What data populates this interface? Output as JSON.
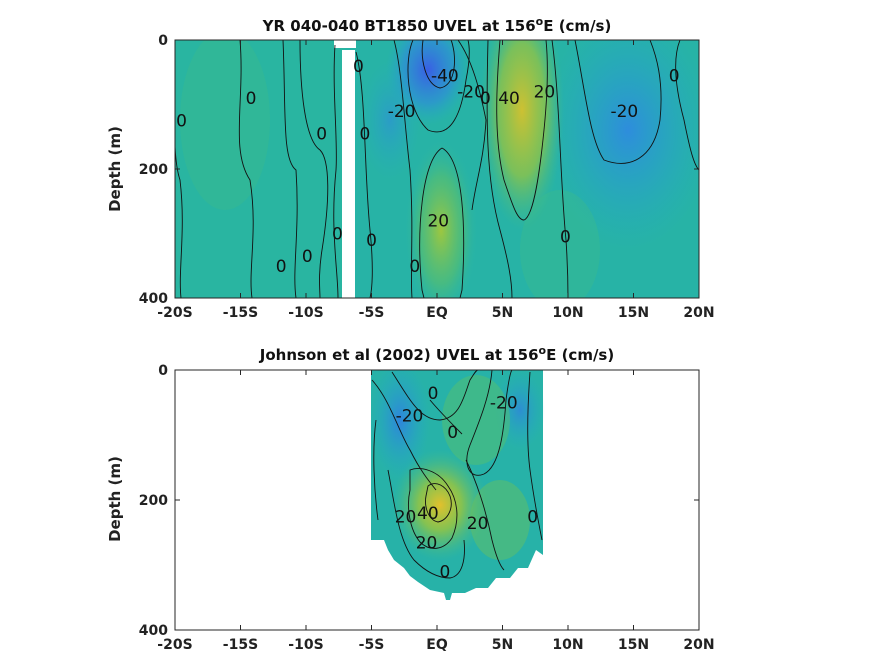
{
  "chart_data": [
    {
      "type": "heatmap",
      "title": "YR 040-040 BT1850 UVEL at 156",
      "title_sup": "o",
      "title_tail": "E (cm/s)",
      "ylabel": "Depth (m)",
      "xlim": [
        -20,
        20
      ],
      "ylim": [
        0,
        400
      ],
      "y_reversed": true,
      "x_ticks": [
        -20,
        -15,
        -10,
        -5,
        0,
        5,
        10,
        15,
        20
      ],
      "x_tick_labels": [
        "-20S",
        "-15S",
        "-10S",
        "-5S",
        "EQ",
        "5N",
        "10N",
        "15N",
        "20N"
      ],
      "y_ticks": [
        0,
        200,
        400
      ],
      "y_tick_labels": [
        "0",
        "200",
        "400"
      ],
      "colormap": "parula",
      "data_coverage": {
        "xmin": -20,
        "xmax": 20,
        "gap_x": [
          -7.5,
          -6.3
        ]
      },
      "contour_labels": [
        {
          "text": "0",
          "x": -19.5,
          "y": 125
        },
        {
          "text": "0",
          "x": -14.2,
          "y": 90
        },
        {
          "text": "0",
          "x": -8.8,
          "y": 145
        },
        {
          "text": "0",
          "x": -7.6,
          "y": 300
        },
        {
          "text": "0",
          "x": -9.9,
          "y": 335
        },
        {
          "text": "0",
          "x": -11.9,
          "y": 350
        },
        {
          "text": "0",
          "x": -6.0,
          "y": 40
        },
        {
          "text": "0",
          "x": -5.5,
          "y": 145
        },
        {
          "text": "0",
          "x": -5.0,
          "y": 310
        },
        {
          "text": "0",
          "x": -1.7,
          "y": 350
        },
        {
          "text": "-20",
          "x": -2.7,
          "y": 110
        },
        {
          "text": "-40",
          "x": 0.6,
          "y": 55
        },
        {
          "text": "-20",
          "x": 2.6,
          "y": 80
        },
        {
          "text": "0",
          "x": 3.7,
          "y": 90
        },
        {
          "text": "40",
          "x": 5.5,
          "y": 90
        },
        {
          "text": "20",
          "x": 8.2,
          "y": 80
        },
        {
          "text": "20",
          "x": 0.1,
          "y": 280
        },
        {
          "text": "0",
          "x": 9.8,
          "y": 305
        },
        {
          "text": "-20",
          "x": 14.3,
          "y": 110
        },
        {
          "text": "0",
          "x": 18.1,
          "y": 55
        }
      ]
    },
    {
      "type": "heatmap",
      "title": "Johnson et al (2002) UVEL at 156",
      "title_sup": "o",
      "title_tail": "E (cm/s)",
      "ylabel": "Depth (m)",
      "xlim": [
        -20,
        20
      ],
      "ylim": [
        0,
        400
      ],
      "y_reversed": true,
      "x_ticks": [
        -20,
        -15,
        -10,
        -5,
        0,
        5,
        10,
        15,
        20
      ],
      "x_tick_labels": [
        "-20S",
        "-15S",
        "-10S",
        "-5S",
        "EQ",
        "5N",
        "10N",
        "15N",
        "20N"
      ],
      "y_ticks": [
        0,
        200,
        400
      ],
      "y_tick_labels": [
        "0",
        "200",
        "400"
      ],
      "colormap": "parula",
      "data_coverage": {
        "xmin": -5,
        "xmax": 8,
        "bottom_depth_approx": 340
      },
      "contour_labels": [
        {
          "text": "0",
          "x": -0.3,
          "y": 35
        },
        {
          "text": "-20",
          "x": -2.1,
          "y": 70
        },
        {
          "text": "0",
          "x": 1.2,
          "y": 95
        },
        {
          "text": "-20",
          "x": 5.1,
          "y": 50
        },
        {
          "text": "0",
          "x": 7.3,
          "y": 225
        },
        {
          "text": "20",
          "x": -2.4,
          "y": 225
        },
        {
          "text": "40",
          "x": -0.7,
          "y": 220
        },
        {
          "text": "20",
          "x": -0.8,
          "y": 265
        },
        {
          "text": "20",
          "x": 3.1,
          "y": 235
        },
        {
          "text": "0",
          "x": 0.6,
          "y": 310
        }
      ]
    }
  ]
}
